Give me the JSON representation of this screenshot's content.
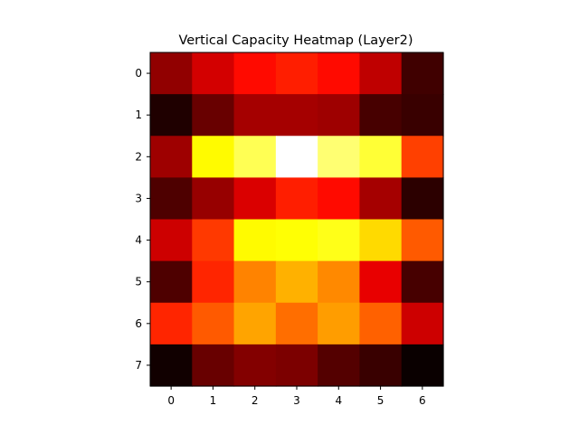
{
  "chart_data": {
    "type": "heatmap",
    "title": "Vertical Capacity Heatmap (Layer2)",
    "xlabel": "",
    "ylabel": "",
    "colormap": "hot",
    "x_ticks": [
      "0",
      "1",
      "2",
      "3",
      "4",
      "5",
      "6"
    ],
    "y_ticks": [
      "0",
      "1",
      "2",
      "3",
      "4",
      "5",
      "6",
      "7"
    ],
    "x_range": [
      -0.5,
      6.5
    ],
    "y_range": [
      7.5,
      -0.5
    ],
    "grid": false,
    "legend": "none",
    "values": [
      [
        0.2,
        0.3,
        0.38,
        0.41,
        0.38,
        0.27,
        0.08
      ],
      [
        0.03,
        0.14,
        0.23,
        0.23,
        0.22,
        0.09,
        0.07
      ],
      [
        0.22,
        0.74,
        0.83,
        1.0,
        0.86,
        0.8,
        0.46
      ],
      [
        0.1,
        0.21,
        0.31,
        0.41,
        0.38,
        0.23,
        0.05
      ],
      [
        0.29,
        0.45,
        0.74,
        0.75,
        0.77,
        0.69,
        0.5
      ],
      [
        0.1,
        0.42,
        0.56,
        0.63,
        0.57,
        0.33,
        0.09
      ],
      [
        0.42,
        0.5,
        0.61,
        0.53,
        0.6,
        0.51,
        0.29
      ],
      [
        0.01,
        0.14,
        0.18,
        0.17,
        0.11,
        0.07,
        0.0
      ]
    ]
  }
}
